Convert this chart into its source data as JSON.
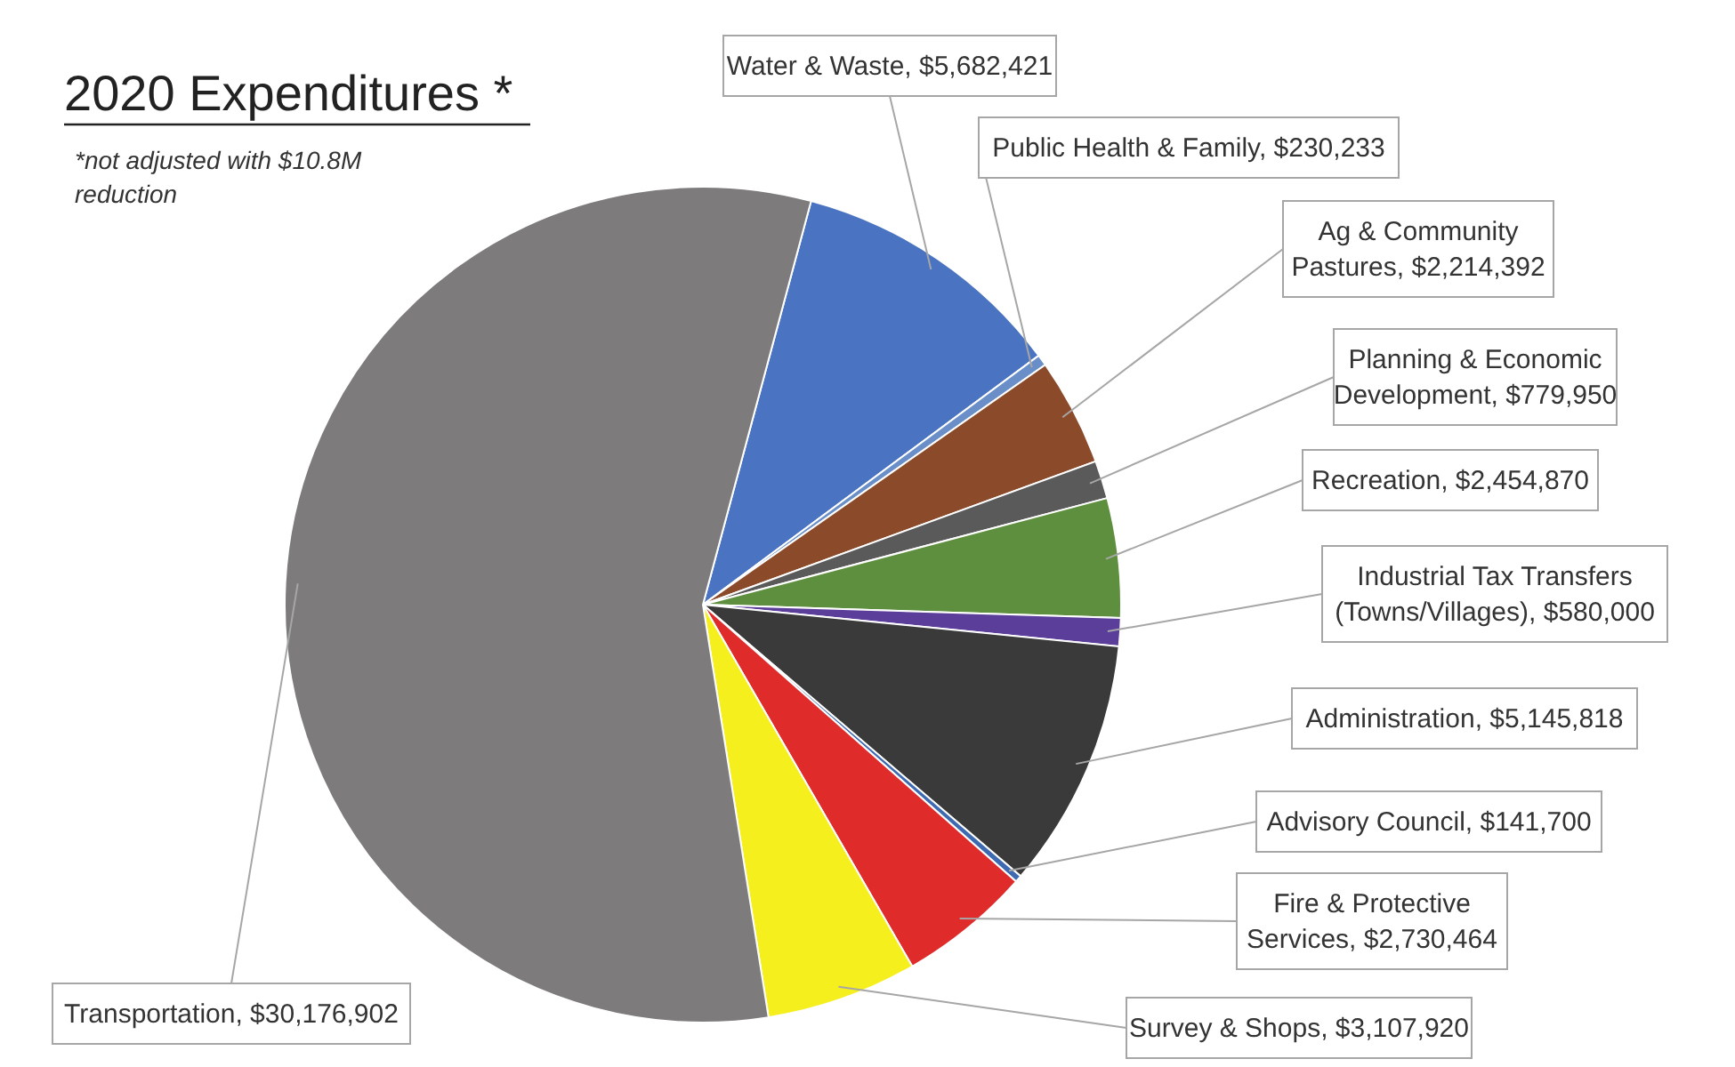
{
  "chart_data": {
    "type": "pie",
    "title": "2020 Expenditures *",
    "annotations": [
      "*not adjusted with $10.8M reduction"
    ],
    "categories": [
      "Water & Waste",
      "Public Health & Family",
      "Ag & Community Pastures",
      "Planning & Economic Development",
      "Recreation",
      "Industrial Tax Transfers (Towns/Villages)",
      "Administration",
      "Advisory Council",
      "Fire & Protective Services",
      "Survey & Shops",
      "Transportation"
    ],
    "values": [
      5682421,
      230233,
      2214392,
      779950,
      2454870,
      580000,
      5145818,
      141700,
      2730464,
      3107920,
      30176902
    ],
    "value_labels": [
      "$5,682,421",
      "$230,233",
      "$2,214,392",
      "$779,950",
      "$2,454,870",
      "$580,000",
      "$5,145,818",
      "$141,700",
      "$2,730,464",
      "$3,107,920",
      "$30,176,902"
    ],
    "colors": [
      "#4a74c1",
      "#6a8fc8",
      "#8b4b2a",
      "#5a5a5a",
      "#5e8f3e",
      "#5b3e9a",
      "#3a3a3a",
      "#3d6ab0",
      "#e02b2b",
      "#f5ef1e",
      "#7d7b7b"
    ]
  }
}
